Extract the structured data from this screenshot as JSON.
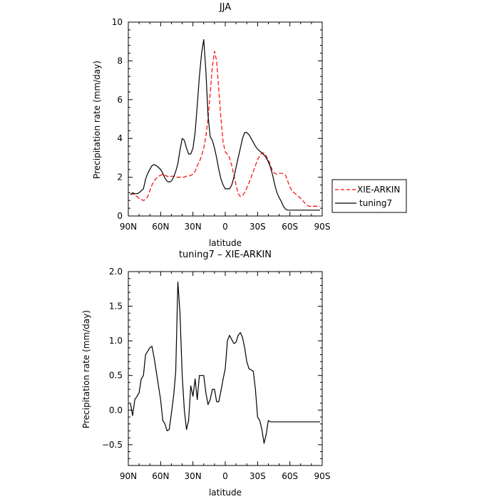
{
  "chart_data": [
    {
      "type": "line",
      "title": "JJA",
      "xlabel": "latitude",
      "ylabel": "Precipitation rate (mm/day)",
      "x_tick_labels": [
        "90N",
        "60N",
        "30N",
        "0",
        "30S",
        "60S",
        "90S"
      ],
      "x_tick_values": [
        90,
        60,
        30,
        0,
        -30,
        -60,
        -90
      ],
      "xlim": [
        90,
        -90
      ],
      "ylim": [
        0,
        10
      ],
      "y_tick_values": [
        0,
        2,
        4,
        6,
        8,
        10
      ],
      "y_tick_labels": [
        "0",
        "2",
        "4",
        "6",
        "8",
        "10"
      ],
      "legend": "right-outside",
      "series": [
        {
          "name": "XIE-ARKIN",
          "color": "#ff0000",
          "style": "dashed",
          "x": [
            88,
            86,
            84,
            82,
            80,
            78,
            76,
            74,
            72,
            70,
            68,
            66,
            64,
            62,
            60,
            58,
            56,
            54,
            52,
            50,
            48,
            46,
            44,
            42,
            40,
            38,
            36,
            34,
            32,
            30,
            28,
            26,
            24,
            22,
            20,
            18,
            16,
            14,
            12,
            10,
            8,
            6,
            4,
            2,
            0,
            -2,
            -4,
            -6,
            -8,
            -10,
            -12,
            -14,
            -16,
            -18,
            -20,
            -22,
            -24,
            -26,
            -28,
            -30,
            -32,
            -34,
            -36,
            -38,
            -40,
            -42,
            -44,
            -46,
            -48,
            -50,
            -52,
            -54,
            -56,
            -58,
            -60,
            -62,
            -64,
            -66,
            -68,
            -70,
            -72,
            -74,
            -76,
            -78,
            -80,
            -82,
            -84,
            -86,
            -88
          ],
          "values": [
            1.1,
            1.15,
            1.1,
            1.0,
            0.9,
            0.85,
            0.8,
            0.85,
            1.0,
            1.3,
            1.6,
            1.8,
            1.95,
            2.05,
            2.1,
            2.15,
            2.1,
            2.05,
            2.0,
            2.05,
            2.05,
            2.0,
            2.0,
            2.0,
            2.0,
            2.0,
            2.05,
            2.05,
            2.1,
            2.15,
            2.3,
            2.6,
            2.8,
            3.1,
            3.5,
            4.1,
            5.0,
            6.3,
            7.7,
            8.5,
            8.0,
            6.5,
            5.0,
            3.8,
            3.3,
            3.2,
            3.0,
            2.6,
            2.1,
            1.6,
            1.15,
            1.0,
            1.05,
            1.2,
            1.45,
            1.7,
            2.0,
            2.3,
            2.6,
            2.9,
            3.1,
            3.25,
            3.25,
            3.1,
            2.9,
            2.6,
            2.3,
            2.2,
            2.15,
            2.2,
            2.2,
            2.2,
            2.1,
            1.8,
            1.5,
            1.3,
            1.2,
            1.1,
            1.0,
            0.9,
            0.8,
            0.65,
            0.55,
            0.5,
            0.5,
            0.5,
            0.5,
            0.5,
            0.5
          ]
        },
        {
          "name": "tuning7",
          "color": "#000000",
          "style": "solid",
          "x": [
            88,
            86,
            84,
            82,
            80,
            78,
            76,
            74,
            72,
            70,
            68,
            66,
            64,
            62,
            60,
            58,
            56,
            54,
            52,
            50,
            48,
            46,
            44,
            42,
            40,
            38,
            36,
            34,
            32,
            30,
            28,
            26,
            24,
            22,
            20,
            18,
            16,
            14,
            12,
            10,
            8,
            6,
            4,
            2,
            0,
            -2,
            -4,
            -6,
            -8,
            -10,
            -12,
            -14,
            -16,
            -18,
            -20,
            -22,
            -24,
            -26,
            -28,
            -30,
            -32,
            -34,
            -36,
            -38,
            -40,
            -42,
            -44,
            -46,
            -48,
            -50,
            -52,
            -54,
            -56,
            -58,
            -60,
            -62,
            -64,
            -66,
            -68,
            -70,
            -72,
            -74,
            -76,
            -78,
            -80,
            -82,
            -84,
            -86,
            -88
          ],
          "values": [
            1.1,
            1.2,
            1.15,
            1.15,
            1.2,
            1.3,
            1.4,
            1.9,
            2.2,
            2.4,
            2.6,
            2.65,
            2.6,
            2.5,
            2.4,
            2.2,
            1.95,
            1.8,
            1.75,
            1.8,
            2.0,
            2.3,
            2.7,
            3.4,
            4.0,
            3.9,
            3.5,
            3.2,
            3.2,
            3.5,
            4.3,
            5.7,
            7.2,
            8.4,
            9.1,
            7.5,
            5.2,
            4.1,
            3.9,
            3.5,
            3.0,
            2.4,
            1.9,
            1.6,
            1.4,
            1.4,
            1.4,
            1.6,
            2.0,
            2.5,
            3.0,
            3.5,
            4.0,
            4.3,
            4.3,
            4.2,
            4.0,
            3.8,
            3.6,
            3.45,
            3.35,
            3.25,
            3.15,
            3.0,
            2.8,
            2.5,
            2.1,
            1.6,
            1.2,
            0.95,
            0.75,
            0.5,
            0.35,
            0.3,
            0.3,
            0.3,
            0.3,
            0.3,
            0.3,
            0.3,
            0.3,
            0.3,
            0.3,
            0.3,
            0.3,
            0.3,
            0.3,
            0.3,
            0.3
          ]
        }
      ]
    },
    {
      "type": "line",
      "title": "tuning7 – XIE-ARKIN",
      "xlabel": "latitude",
      "ylabel": "Precipitation rate (mm/day)",
      "x_tick_labels": [
        "90N",
        "60N",
        "30N",
        "0",
        "30S",
        "60S",
        "90S"
      ],
      "x_tick_values": [
        90,
        60,
        30,
        0,
        -30,
        -60,
        -90
      ],
      "xlim": [
        90,
        -90
      ],
      "ylim": [
        -0.8,
        2.0
      ],
      "y_tick_values": [
        -0.5,
        0.0,
        0.5,
        1.0,
        1.5,
        2.0
      ],
      "y_tick_labels": [
        "−0.5",
        "0.0",
        "0.5",
        "1.0",
        "1.5",
        "2.0"
      ],
      "series": [
        {
          "color": "#000000",
          "style": "solid",
          "x": [
            88,
            86,
            84,
            82,
            80,
            78,
            76,
            74,
            72,
            70,
            68,
            66,
            64,
            62,
            60,
            58,
            56,
            54,
            52,
            50,
            48,
            46,
            44,
            42,
            40,
            38,
            36,
            34,
            32,
            30,
            28,
            26,
            24,
            22,
            20,
            18,
            16,
            14,
            12,
            10,
            8,
            6,
            4,
            2,
            0,
            -2,
            -4,
            -6,
            -8,
            -10,
            -12,
            -14,
            -16,
            -18,
            -20,
            -22,
            -24,
            -26,
            -28,
            -30,
            -32,
            -34,
            -36,
            -38,
            -40,
            -42,
            -44,
            -46,
            -48,
            -50,
            -52,
            -54,
            -56,
            -58,
            -60,
            -62,
            -64,
            -66,
            -68,
            -70,
            -72,
            -74,
            -76,
            -78,
            -80,
            -82,
            -84,
            -86,
            -88
          ],
          "values": [
            0.1,
            -0.08,
            0.15,
            0.2,
            0.25,
            0.45,
            0.5,
            0.8,
            0.85,
            0.9,
            0.92,
            0.75,
            0.55,
            0.35,
            0.15,
            -0.15,
            -0.2,
            -0.3,
            -0.28,
            -0.05,
            0.2,
            0.55,
            1.85,
            1.4,
            0.5,
            0.0,
            -0.28,
            -0.15,
            0.35,
            0.2,
            0.45,
            0.15,
            0.5,
            0.5,
            0.5,
            0.25,
            0.08,
            0.15,
            0.3,
            0.3,
            0.12,
            0.12,
            0.28,
            0.45,
            0.6,
            1.0,
            1.08,
            1.02,
            0.96,
            0.98,
            1.08,
            1.12,
            1.05,
            0.9,
            0.7,
            0.6,
            0.58,
            0.56,
            0.3,
            -0.1,
            -0.15,
            -0.28,
            -0.48,
            -0.35,
            -0.15,
            -0.17,
            -0.17,
            -0.17,
            -0.17,
            -0.17,
            -0.17,
            -0.17,
            -0.17,
            -0.17,
            -0.17,
            -0.17,
            -0.17,
            -0.17,
            -0.17,
            -0.17,
            -0.17,
            -0.17,
            -0.17,
            -0.17,
            -0.17,
            -0.17,
            -0.17,
            -0.17,
            -0.17
          ]
        }
      ]
    }
  ]
}
